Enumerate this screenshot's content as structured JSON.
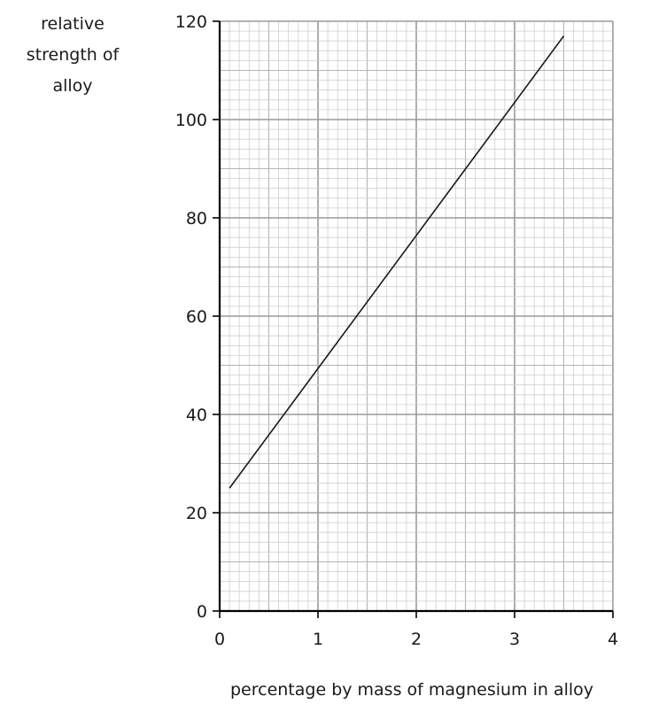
{
  "chart_data": {
    "type": "line",
    "ylabel_lines": [
      "relative",
      "strength of",
      "alloy"
    ],
    "xlabel": "percentage by mass of magnesium in alloy",
    "xlim": [
      0,
      4
    ],
    "ylim": [
      0,
      120
    ],
    "x_ticks": [
      "0",
      "1",
      "2",
      "3",
      "4"
    ],
    "y_ticks": [
      "0",
      "20",
      "40",
      "60",
      "80",
      "100",
      "120"
    ],
    "grid": true,
    "series": [
      {
        "x": [
          0.1,
          3.5
        ],
        "y": [
          25,
          117
        ]
      }
    ]
  }
}
